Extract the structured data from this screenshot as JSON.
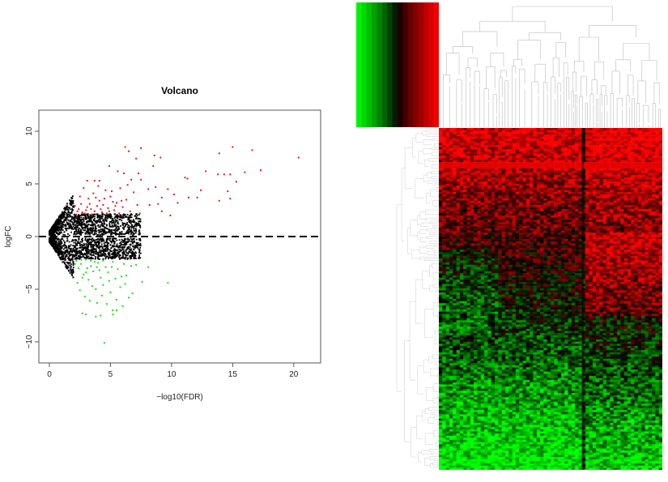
{
  "chart_data": [
    {
      "type": "scatter",
      "title": "Volcano",
      "xlabel": "−log10(FDR)",
      "ylabel": "logFC",
      "xlim": [
        -0.86,
        22.2
      ],
      "ylim": [
        -12,
        12
      ],
      "xticks": [
        0,
        5,
        10,
        15,
        20
      ],
      "yticks": [
        -10,
        -5,
        0,
        5,
        10
      ],
      "grid": false,
      "reference_line": {
        "y": 0,
        "style": "dashed",
        "color": "#000000"
      },
      "series": [
        {
          "color": "#e41a1c",
          "points": [
            [
              6.2,
              8.5
            ],
            [
              7.5,
              8.4
            ],
            [
              6.5,
              8.1
            ],
            [
              8.6,
              7.7
            ],
            [
              9.1,
              7.5
            ],
            [
              13.9,
              7.9
            ],
            [
              15.0,
              8.5
            ],
            [
              16.6,
              8.2
            ],
            [
              20.4,
              7.5
            ],
            [
              7.1,
              7.4
            ],
            [
              4.9,
              6.7
            ],
            [
              8.5,
              6.7
            ],
            [
              12.8,
              6.2
            ],
            [
              17.3,
              6.3
            ],
            [
              16.0,
              6.1
            ],
            [
              13.8,
              5.9
            ],
            [
              14.3,
              5.9
            ],
            [
              14.8,
              5.9
            ],
            [
              15.3,
              5.2
            ],
            [
              11.1,
              5.6
            ],
            [
              11.3,
              5.5
            ],
            [
              12.4,
              4.4
            ],
            [
              14.6,
              4.3
            ],
            [
              14.8,
              3.6
            ],
            [
              13.9,
              3.4
            ],
            [
              12.1,
              3.7
            ],
            [
              11.4,
              3.7
            ],
            [
              10.5,
              3.2
            ],
            [
              10.2,
              4.0
            ],
            [
              9.7,
              4.5
            ],
            [
              9.2,
              3.7
            ],
            [
              8.9,
              3.1
            ],
            [
              8.2,
              3.0
            ],
            [
              9.9,
              2.0
            ],
            [
              9.2,
              2.4
            ],
            [
              7.3,
              6.0
            ],
            [
              6.1,
              6.0
            ],
            [
              5.6,
              6.2
            ],
            [
              6.7,
              5.4
            ],
            [
              7.5,
              5.4
            ],
            [
              8.1,
              4.5
            ],
            [
              8.7,
              4.7
            ],
            [
              3.7,
              5.3
            ],
            [
              4.1,
              5.3
            ],
            [
              3.1,
              5.3
            ],
            [
              2.3,
              2.4
            ],
            [
              2.6,
              3.1
            ],
            [
              2.9,
              2.2
            ],
            [
              3.2,
              3.6
            ],
            [
              3.4,
              2.6
            ],
            [
              3.6,
              4.1
            ],
            [
              3.9,
              2.9
            ],
            [
              4.1,
              3.4
            ],
            [
              4.3,
              2.3
            ],
            [
              4.6,
              4.4
            ],
            [
              4.8,
              2.7
            ],
            [
              5.0,
              3.8
            ],
            [
              5.3,
              2.5
            ],
            [
              5.5,
              3.2
            ],
            [
              5.8,
              4.6
            ],
            [
              6.0,
              2.8
            ],
            [
              6.3,
              3.5
            ],
            [
              6.6,
              2.4
            ],
            [
              6.9,
              4.2
            ],
            [
              7.2,
              3.0
            ],
            [
              7.4,
              2.2
            ],
            [
              2.1,
              2.9
            ],
            [
              2.5,
              3.8
            ],
            [
              2.8,
              4.6
            ],
            [
              3.0,
              2.5
            ],
            [
              3.3,
              3.1
            ],
            [
              3.5,
              2.1
            ],
            [
              3.8,
              3.7
            ],
            [
              4.0,
              4.8
            ],
            [
              4.4,
              3.0
            ],
            [
              4.7,
              2.2
            ],
            [
              5.1,
              4.3
            ],
            [
              5.4,
              2.9
            ],
            [
              5.7,
              2.2
            ],
            [
              6.4,
              4.9
            ],
            [
              2.2,
              2.1
            ],
            [
              2.4,
              2.6
            ],
            [
              2.7,
              2.3
            ],
            [
              3.1,
              2.8
            ],
            [
              3.7,
              2.4
            ],
            [
              4.2,
              2.6
            ],
            [
              4.5,
              3.6
            ],
            [
              4.9,
              2.4
            ],
            [
              5.2,
              3.3
            ],
            [
              5.9,
              3.4
            ]
          ]
        },
        {
          "color": "#1fdc1f",
          "points": [
            [
              8.1,
              -2.9
            ],
            [
              9.7,
              -4.4
            ],
            [
              7.6,
              -4.3
            ],
            [
              6.8,
              -5.4
            ],
            [
              6.0,
              -6.6
            ],
            [
              5.2,
              -7.0
            ],
            [
              5.5,
              -7.0
            ],
            [
              4.5,
              -10.1
            ],
            [
              2.7,
              -7.3
            ],
            [
              3.0,
              -7.4
            ],
            [
              3.8,
              -7.6
            ],
            [
              4.2,
              -7.5
            ],
            [
              5.2,
              -7.4
            ],
            [
              7.1,
              -2.7
            ],
            [
              2.2,
              -2.3
            ],
            [
              2.4,
              -3.0
            ],
            [
              2.6,
              -2.6
            ],
            [
              2.8,
              -3.6
            ],
            [
              3.0,
              -2.2
            ],
            [
              3.2,
              -4.1
            ],
            [
              3.4,
              -2.8
            ],
            [
              3.6,
              -3.3
            ],
            [
              3.8,
              -5.0
            ],
            [
              4.0,
              -2.5
            ],
            [
              4.2,
              -3.9
            ],
            [
              4.4,
              -4.6
            ],
            [
              4.6,
              -2.9
            ],
            [
              4.8,
              -3.4
            ],
            [
              5.0,
              -5.3
            ],
            [
              5.2,
              -2.4
            ],
            [
              5.4,
              -4.0
            ],
            [
              5.6,
              -3.1
            ],
            [
              5.8,
              -4.8
            ],
            [
              6.1,
              -2.6
            ],
            [
              6.3,
              -3.7
            ],
            [
              6.5,
              -5.8
            ],
            [
              2.3,
              -4.4
            ],
            [
              2.5,
              -5.1
            ],
            [
              2.7,
              -3.9
            ],
            [
              2.9,
              -5.7
            ],
            [
              3.1,
              -3.0
            ],
            [
              3.3,
              -6.1
            ],
            [
              3.5,
              -4.7
            ],
            [
              3.7,
              -2.4
            ],
            [
              3.9,
              -6.3
            ],
            [
              4.1,
              -3.2
            ],
            [
              4.3,
              -5.6
            ],
            [
              4.7,
              -6.4
            ],
            [
              4.9,
              -4.2
            ],
            [
              5.1,
              -2.9
            ],
            [
              5.5,
              -6.0
            ],
            [
              5.9,
              -3.8
            ],
            [
              6.2,
              -4.5
            ],
            [
              6.7,
              -2.8
            ],
            [
              2.1,
              -2.6
            ],
            [
              2.6,
              -2.2
            ],
            [
              3.0,
              -3.4
            ],
            [
              3.4,
              -2.3
            ],
            [
              3.9,
              -2.9
            ],
            [
              4.4,
              -2.3
            ]
          ]
        }
      ]
    },
    {
      "type": "heatmap",
      "color_scale": [
        "#00ff00",
        "#000000",
        "#ff0000"
      ],
      "row_dendrogram": true,
      "column_dendrogram": true,
      "color_key": true
    }
  ]
}
